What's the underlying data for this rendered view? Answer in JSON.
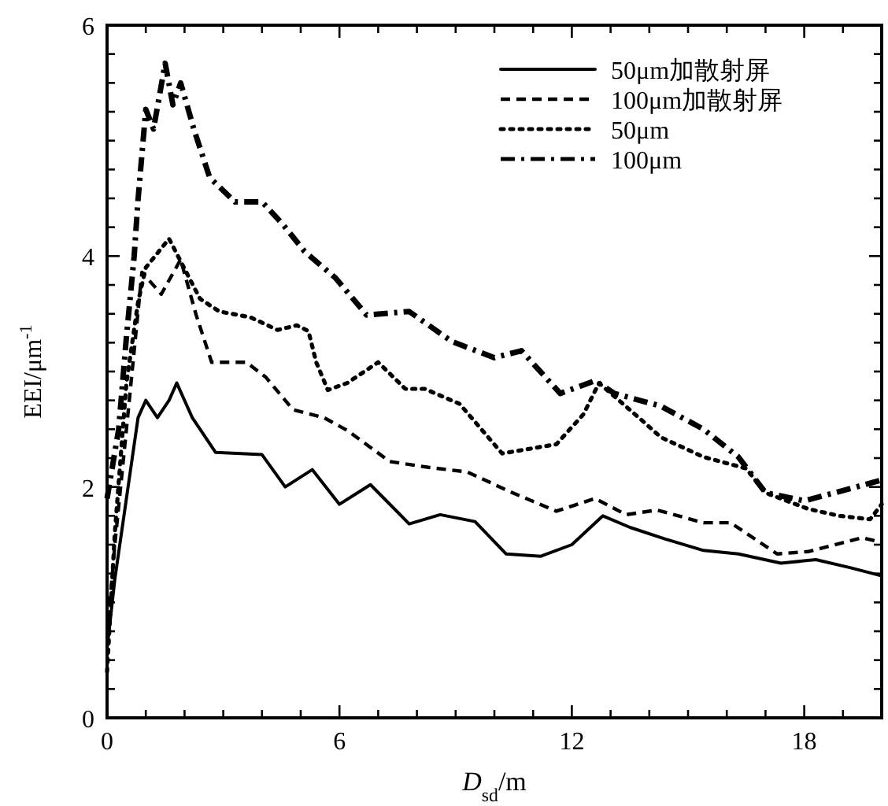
{
  "chart_data": {
    "type": "line",
    "xlabel": "*D*$_{sd}$/m",
    "ylabel": "EEI/μm$^{-1}$",
    "xlim": [
      0,
      20
    ],
    "ylim": [
      0,
      6
    ],
    "xticks": [
      0,
      {
        "value": 1,
        "label": null
      },
      {
        "value": 2,
        "label": null
      },
      {
        "value": 3,
        "label": null
      },
      {
        "value": 4,
        "label": null
      },
      {
        "value": 5,
        "label": null
      },
      6,
      {
        "value": 7,
        "label": null
      },
      {
        "value": 8,
        "label": null
      },
      {
        "value": 9,
        "label": null
      },
      {
        "value": 10,
        "label": null
      },
      {
        "value": 11,
        "label": null
      },
      12,
      {
        "value": 13,
        "label": null
      },
      {
        "value": 14,
        "label": null
      },
      {
        "value": 15,
        "label": null
      },
      {
        "value": 16,
        "label": null
      },
      {
        "value": 17,
        "label": null
      },
      18,
      {
        "value": 19,
        "label": null
      },
      {
        "value": 20,
        "label": null
      }
    ],
    "yticks": [
      0,
      {
        "value": 0.25,
        "label": null
      },
      {
        "value": 0.5,
        "label": null
      },
      {
        "value": 0.75,
        "label": null
      },
      {
        "value": 1,
        "label": null
      },
      {
        "value": 1.25,
        "label": null
      },
      {
        "value": 1.5,
        "label": null
      },
      {
        "value": 1.75,
        "label": null
      },
      2,
      {
        "value": 2.25,
        "label": null
      },
      {
        "value": 2.5,
        "label": null
      },
      {
        "value": 2.75,
        "label": null
      },
      {
        "value": 3,
        "label": null
      },
      {
        "value": 3.25,
        "label": null
      },
      {
        "value": 3.5,
        "label": null
      },
      {
        "value": 3.75,
        "label": null
      },
      4,
      {
        "value": 4.25,
        "label": null
      },
      {
        "value": 4.5,
        "label": null
      },
      {
        "value": 4.75,
        "label": null
      },
      {
        "value": 5,
        "label": null
      },
      {
        "value": 5.25,
        "label": null
      },
      {
        "value": 5.5,
        "label": null
      },
      {
        "value": 5.75,
        "label": null
      },
      6
    ],
    "legend": "top right",
    "series": [
      {
        "name": "50μm加散射屏",
        "color": "#000000",
        "line_style": "solid",
        "x": [
          0,
          0.2,
          0.5,
          0.8,
          1.0,
          1.3,
          1.6,
          1.8,
          2.2,
          2.8,
          4.0,
          4.6,
          5.3,
          6.0,
          6.8,
          7.8,
          8.6,
          9.5,
          10.3,
          11.2,
          12.0,
          12.8,
          13.5,
          14.4,
          15.4,
          16.3,
          17.4,
          18.3,
          19.2,
          20.0
        ],
        "values": [
          0.6,
          1.2,
          1.9,
          2.6,
          2.75,
          2.6,
          2.75,
          2.9,
          2.6,
          2.3,
          2.28,
          2.0,
          2.15,
          1.85,
          2.02,
          1.68,
          1.76,
          1.7,
          1.42,
          1.4,
          1.5,
          1.75,
          1.65,
          1.55,
          1.45,
          1.42,
          1.34,
          1.37,
          1.3,
          1.23
        ]
      },
      {
        "name": "100μm加散射屏",
        "color": "#000000",
        "line_style": "dashed",
        "x": [
          0,
          0.2,
          0.5,
          0.9,
          1.4,
          1.9,
          2.3,
          2.7,
          3.6,
          4.1,
          4.8,
          5.6,
          6.2,
          7.3,
          8.3,
          9.3,
          10.4,
          11.6,
          12.6,
          13.4,
          14.2,
          15.4,
          16.1,
          17.3,
          18.1,
          19.5,
          20.0
        ],
        "values": [
          0.7,
          1.5,
          2.5,
          3.86,
          3.67,
          3.97,
          3.49,
          3.08,
          3.08,
          2.95,
          2.67,
          2.6,
          2.49,
          2.22,
          2.17,
          2.13,
          1.96,
          1.79,
          1.9,
          1.76,
          1.8,
          1.69,
          1.69,
          1.42,
          1.44,
          1.56,
          1.52
        ]
      },
      {
        "name": "50μm",
        "color": "#000000",
        "line_style": "dotted",
        "x": [
          0,
          0.2,
          0.5,
          0.8,
          1.0,
          1.6,
          2.4,
          2.9,
          3.7,
          4.4,
          4.9,
          5.2,
          5.4,
          5.7,
          6.2,
          7.0,
          7.7,
          8.2,
          9.1,
          10.2,
          11.6,
          12.3,
          12.7,
          13.8,
          14.3,
          15.4,
          16.5,
          17.0,
          18.1,
          18.9,
          19.7,
          20.0
        ],
        "values": [
          0.4,
          1.6,
          2.9,
          3.6,
          3.9,
          4.15,
          3.63,
          3.52,
          3.47,
          3.36,
          3.4,
          3.35,
          3.08,
          2.84,
          2.9,
          3.08,
          2.85,
          2.85,
          2.72,
          2.29,
          2.37,
          2.63,
          2.9,
          2.58,
          2.43,
          2.26,
          2.16,
          1.95,
          1.81,
          1.75,
          1.72,
          1.85
        ]
      },
      {
        "name": "100μm",
        "color": "#000000",
        "line_style": "dashdot",
        "x": [
          0,
          0.3,
          0.5,
          0.7,
          0.8,
          1.0,
          1.2,
          1.5,
          1.7,
          1.9,
          2.25,
          2.65,
          3.3,
          4.0,
          4.55,
          5.1,
          5.9,
          6.7,
          7.8,
          8.9,
          10.0,
          10.7,
          11.7,
          12.6,
          13.1,
          14.3,
          15.4,
          16.3,
          17.0,
          18.0,
          18.9,
          20.0
        ],
        "values": [
          1.9,
          2.5,
          3.3,
          4.0,
          4.49,
          5.27,
          5.1,
          5.67,
          5.31,
          5.5,
          5.09,
          4.68,
          4.47,
          4.47,
          4.27,
          4.04,
          3.81,
          3.49,
          3.52,
          3.26,
          3.12,
          3.18,
          2.81,
          2.92,
          2.81,
          2.7,
          2.5,
          2.26,
          1.95,
          1.88,
          1.96,
          2.06
        ]
      }
    ]
  }
}
